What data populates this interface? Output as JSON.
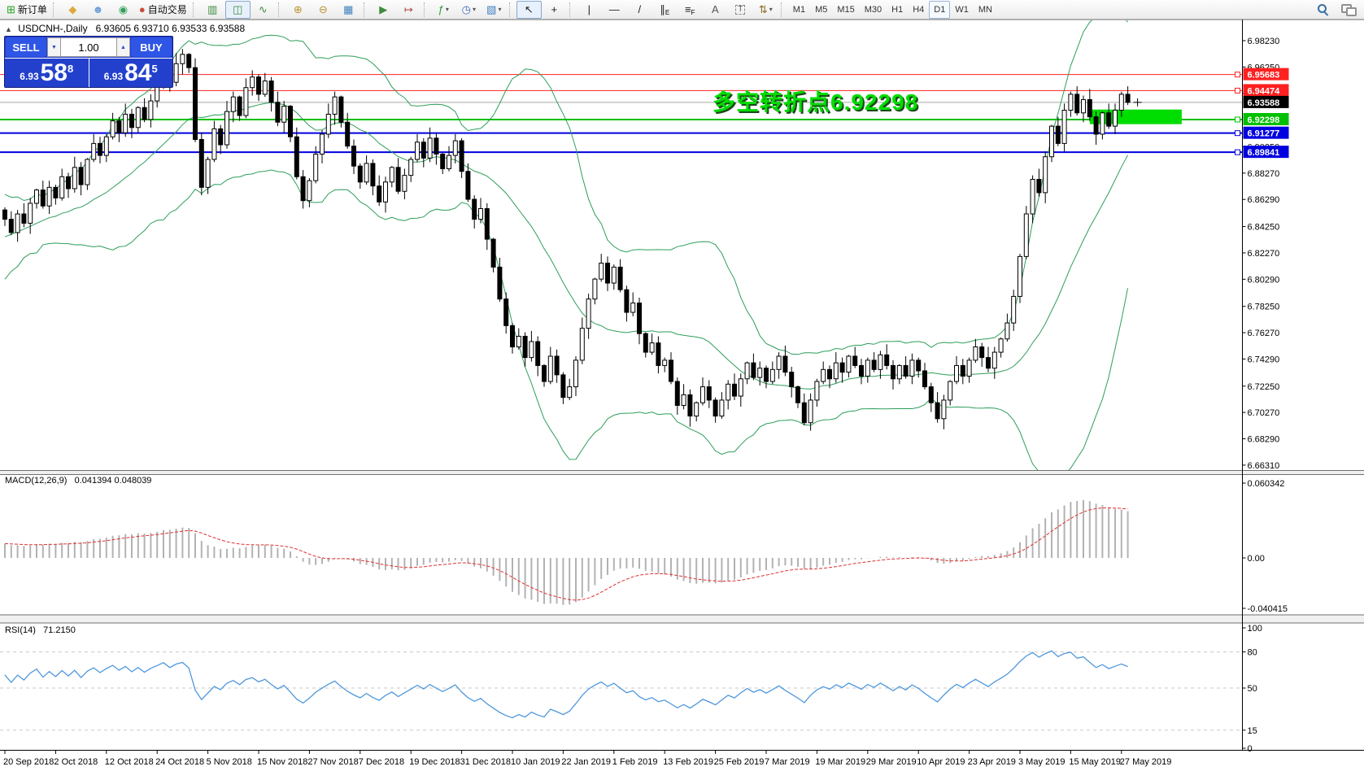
{
  "toolbar": {
    "items": [
      {
        "kind": "button",
        "name": "new-order",
        "glyph": "⊞",
        "color": "#1fa31f",
        "label": "新订单"
      },
      {
        "kind": "sep"
      },
      {
        "kind": "button",
        "name": "gold",
        "glyph": "◆",
        "color": "#e0a93e"
      },
      {
        "kind": "button",
        "name": "support-chat",
        "glyph": "☻",
        "color": "#6f9fd8"
      },
      {
        "kind": "button",
        "name": "signals",
        "glyph": "◉",
        "color": "#35a05a"
      },
      {
        "kind": "button",
        "name": "autotrading",
        "glyph": "●",
        "color": "#cf4a3a",
        "label": "自动交易"
      },
      {
        "kind": "sep"
      },
      {
        "kind": "button",
        "name": "bar-chart",
        "glyph": "▥",
        "color": "#3d8b3d"
      },
      {
        "kind": "button",
        "name": "candlestick-chart",
        "glyph": "◫",
        "color": "#3d8b3d",
        "active": true
      },
      {
        "kind": "button",
        "name": "line-chart",
        "glyph": "∿",
        "color": "#3d8b3d"
      },
      {
        "kind": "sep"
      },
      {
        "kind": "button",
        "name": "zoom-in",
        "glyph": "⊕",
        "color": "#b8932f"
      },
      {
        "kind": "button",
        "name": "zoom-out",
        "glyph": "⊖",
        "color": "#b8932f"
      },
      {
        "kind": "button",
        "name": "tile-windows",
        "glyph": "▦",
        "color": "#3f7fbf"
      },
      {
        "kind": "sep"
      },
      {
        "kind": "button",
        "name": "auto-scroll",
        "glyph": "▶",
        "color": "#3d8b3d"
      },
      {
        "kind": "button",
        "name": "chart-shift",
        "glyph": "↦",
        "color": "#b04040"
      },
      {
        "kind": "sep"
      },
      {
        "kind": "button",
        "name": "indicators",
        "glyph": "ƒ",
        "color": "#2aa02a",
        "dropdown": true
      },
      {
        "kind": "button",
        "name": "periods",
        "glyph": "◷",
        "color": "#3f6fbf",
        "dropdown": true
      },
      {
        "kind": "button",
        "name": "templates",
        "glyph": "▧",
        "color": "#3f7fbf",
        "dropdown": true
      },
      {
        "kind": "sep"
      },
      {
        "kind": "button",
        "name": "cursor",
        "glyph": "↖",
        "color": "#222222",
        "active": true
      },
      {
        "kind": "button",
        "name": "crosshair",
        "glyph": "+",
        "color": "#222222"
      },
      {
        "kind": "sep"
      },
      {
        "kind": "button",
        "name": "vertical-line",
        "glyph": "|",
        "color": "#222222"
      },
      {
        "kind": "button",
        "name": "horizontal-line",
        "glyph": "—",
        "color": "#222222"
      },
      {
        "kind": "button",
        "name": "trendline",
        "glyph": "/",
        "color": "#222222"
      },
      {
        "kind": "button",
        "name": "equidistant-channel",
        "glyph": "∥",
        "sub": "E",
        "color": "#222222"
      },
      {
        "kind": "button",
        "name": "fibonacci",
        "glyph": "≡",
        "sub": "F",
        "color": "#222222"
      },
      {
        "kind": "button",
        "name": "text",
        "glyph": "A",
        "color": "#555555"
      },
      {
        "kind": "button",
        "name": "text-label",
        "glyph": "T",
        "boxed": true,
        "color": "#555555"
      },
      {
        "kind": "button",
        "name": "arrows",
        "glyph": "⇅",
        "color": "#8a6d1f",
        "dropdown": true
      },
      {
        "kind": "sep"
      },
      {
        "kind": "tf",
        "name": "timeframe-m1",
        "label": "M1"
      },
      {
        "kind": "tf",
        "name": "timeframe-m5",
        "label": "M5"
      },
      {
        "kind": "tf",
        "name": "timeframe-m15",
        "label": "M15"
      },
      {
        "kind": "tf",
        "name": "timeframe-m30",
        "label": "M30"
      },
      {
        "kind": "tf",
        "name": "timeframe-h1",
        "label": "H1"
      },
      {
        "kind": "tf",
        "name": "timeframe-h4",
        "label": "H4"
      },
      {
        "kind": "tf",
        "name": "timeframe-d1",
        "label": "D1",
        "active": true
      },
      {
        "kind": "tf",
        "name": "timeframe-w1",
        "label": "W1"
      },
      {
        "kind": "tf",
        "name": "timeframe-mn",
        "label": "MN"
      },
      {
        "kind": "spacer"
      },
      {
        "kind": "button",
        "name": "search",
        "special": "mag"
      },
      {
        "kind": "button",
        "name": "chat",
        "special": "bubble"
      }
    ]
  },
  "icons": {
    "collapse": "▲",
    "spin_down": "▼",
    "spin_up": "▲"
  },
  "header": {
    "title": "USDCNH-,Daily",
    "quote": "6.93605 6.93710 6.93533 6.93588"
  },
  "trade_panel": {
    "sell_label": "SELL",
    "buy_label": "BUY",
    "volume": "1.00",
    "sell_price_small": "6.93",
    "sell_price_big": "58",
    "sell_price_sup": "8",
    "buy_price_small": "6.93",
    "buy_price_big": "84",
    "buy_price_sup": "5"
  },
  "annotation": {
    "text": "多空转折点6.92298",
    "color": "#00dd00",
    "shadow": "#1a4a1a"
  },
  "chart_data": {
    "type": "candlestick",
    "symbol": "USDCNH-",
    "period": "Daily",
    "quote_ohlc": [
      "6.93605",
      "6.93710",
      "6.93533",
      "6.93588"
    ],
    "open_first": 6.855,
    "warmup_closes": [
      6.79,
      6.801,
      6.812,
      6.806,
      6.818,
      6.826,
      6.815,
      6.83,
      6.842,
      6.835,
      6.848,
      6.84,
      6.852,
      6.844,
      6.838,
      6.846,
      6.855,
      6.848,
      6.842,
      6.85
    ],
    "closes": [
      6.848,
      6.838,
      6.852,
      6.845,
      6.86,
      6.87,
      6.858,
      6.872,
      6.864,
      6.88,
      6.871,
      6.887,
      6.874,
      6.893,
      6.905,
      6.896,
      6.91,
      6.922,
      6.913,
      6.927,
      6.917,
      6.932,
      6.923,
      6.937,
      6.948,
      6.96,
      6.951,
      6.965,
      6.972,
      6.962,
      6.908,
      6.872,
      6.893,
      6.916,
      6.904,
      6.929,
      6.94,
      6.926,
      6.947,
      6.955,
      6.942,
      6.952,
      6.936,
      6.921,
      6.933,
      6.91,
      6.88,
      6.862,
      6.877,
      6.897,
      6.912,
      6.927,
      6.94,
      6.921,
      6.903,
      6.888,
      6.876,
      6.89,
      6.873,
      6.861,
      6.876,
      6.887,
      6.869,
      6.881,
      6.893,
      6.906,
      6.894,
      6.909,
      6.897,
      6.886,
      6.896,
      6.907,
      6.884,
      6.863,
      6.848,
      6.856,
      6.833,
      6.812,
      6.788,
      6.768,
      6.752,
      6.76,
      6.744,
      6.756,
      6.738,
      6.726,
      6.745,
      6.731,
      6.714,
      6.722,
      6.742,
      6.766,
      6.788,
      6.803,
      6.815,
      6.8,
      6.812,
      6.795,
      6.778,
      6.785,
      6.762,
      6.748,
      6.755,
      6.738,
      6.742,
      6.726,
      6.708,
      6.716,
      6.7,
      6.71,
      6.722,
      6.712,
      6.7,
      6.712,
      6.724,
      6.715,
      6.728,
      6.74,
      6.729,
      6.736,
      6.726,
      6.735,
      6.745,
      6.733,
      6.722,
      6.71,
      6.695,
      6.712,
      6.726,
      6.735,
      6.728,
      6.74,
      6.733,
      6.745,
      6.738,
      6.73,
      6.742,
      6.735,
      6.746,
      6.738,
      6.728,
      6.738,
      6.73,
      6.742,
      6.734,
      6.722,
      6.71,
      6.698,
      6.712,
      6.726,
      6.738,
      6.73,
      6.742,
      6.752,
      6.744,
      6.736,
      6.748,
      6.758,
      6.77,
      6.79,
      6.82,
      6.852,
      6.878,
      6.868,
      6.895,
      6.918,
      6.905,
      6.93,
      6.942,
      6.928,
      6.938,
      6.925,
      6.912,
      6.928,
      6.918,
      6.93,
      6.942,
      6.9359
    ],
    "wick_high_pattern": [
      0.002,
      0.006,
      0.003,
      0.008,
      0.004,
      0.001,
      0.007,
      0.005
    ],
    "wick_low_pattern": [
      0.005,
      0.002,
      0.007,
      0.003,
      0.008,
      0.004,
      0.002,
      0.006
    ],
    "x_labels": [
      "20 Sep 2018",
      "2 Oct 2018",
      "12 Oct 2018",
      "24 Oct 2018",
      "5 Nov 2018",
      "15 Nov 2018",
      "27 Nov 2018",
      "7 Dec 2018",
      "19 Dec 2018",
      "31 Dec 2018",
      "10 Jan 2019",
      "22 Jan 2019",
      "1 Feb 2019",
      "13 Feb 2019",
      "25 Feb 2019",
      "7 Mar 2019",
      "19 Mar 2019",
      "29 Mar 2019",
      "10 Apr 2019",
      "23 Apr 2019",
      "3 May 2019",
      "15 May 2019",
      "27 May 2019"
    ],
    "bars_per_label": 8,
    "price_ticks": [
      "6.98230",
      "6.96250",
      "6.94270",
      "6.90250",
      "6.88270",
      "6.86290",
      "6.84250",
      "6.82270",
      "6.80290",
      "6.78250",
      "6.76270",
      "6.74290",
      "6.72250",
      "6.70270",
      "6.68290",
      "6.66310"
    ],
    "hlines": [
      {
        "price": 6.95683,
        "label": "6.95683",
        "color": "#ff2020",
        "width": 1
      },
      {
        "price": 6.94474,
        "label": "6.94474",
        "color": "#ff2020",
        "width": 1
      },
      {
        "price": 6.93588,
        "label": "6.93588",
        "color": "#a8a8a8",
        "label_bg": "#000000",
        "width": 1,
        "current": true
      },
      {
        "price": 6.92298,
        "label": "6.92298",
        "color": "#00c000",
        "width": 2
      },
      {
        "price": 6.91277,
        "label": "6.91277",
        "color": "#0000e0",
        "width": 2
      },
      {
        "price": 6.89841,
        "label": "6.89841",
        "color": "#0000e0",
        "width": 2
      }
    ],
    "highlight_zone": {
      "price_top": 6.9305,
      "price_bottom": 6.9195,
      "bar_start": 171,
      "bar_end": 185.5,
      "color": "#00dd00"
    },
    "bollinger": {
      "period": 20,
      "deviations": 2,
      "color": "#2e9e5b"
    },
    "macd": {
      "fast": 12,
      "slow": 26,
      "signal": 9,
      "label": "MACD(12,26,9)",
      "values_text": "0.041394 0.048039",
      "hist_color": "#b2b2b2",
      "signal_color": "#e03030",
      "axis_labels": [
        "0.060342",
        "0.00",
        "-0.040415"
      ]
    },
    "rsi": {
      "period": 14,
      "label": "RSI(14)",
      "value_text": "71.2150",
      "color": "#4f97dc",
      "axis_top": "100",
      "axis_bottom": "0",
      "levels": [
        "80",
        "50",
        "15"
      ]
    }
  }
}
